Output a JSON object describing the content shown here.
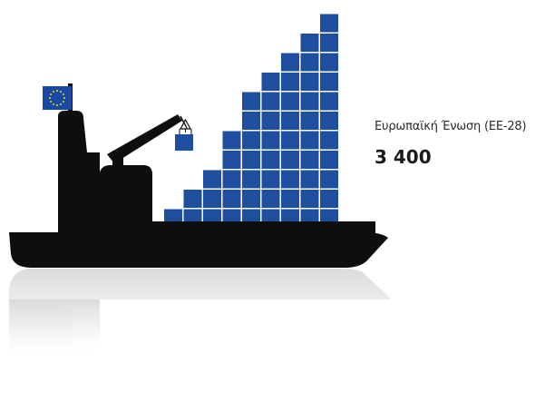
{
  "infographic": {
    "region_label": "Ευρωπαϊκή Ένωση (ΕΕ-28)",
    "region_value": "3 400"
  },
  "colors": {
    "container_blue": "#1e4e9e",
    "ship_black": "#0e0e0e",
    "flag_blue": "#1a49a3",
    "flag_stars": "#f2d21b"
  },
  "icons": {
    "flag": "eu-flag-icon",
    "ship": "cargo-ship-icon",
    "crane": "crane-icon"
  }
}
